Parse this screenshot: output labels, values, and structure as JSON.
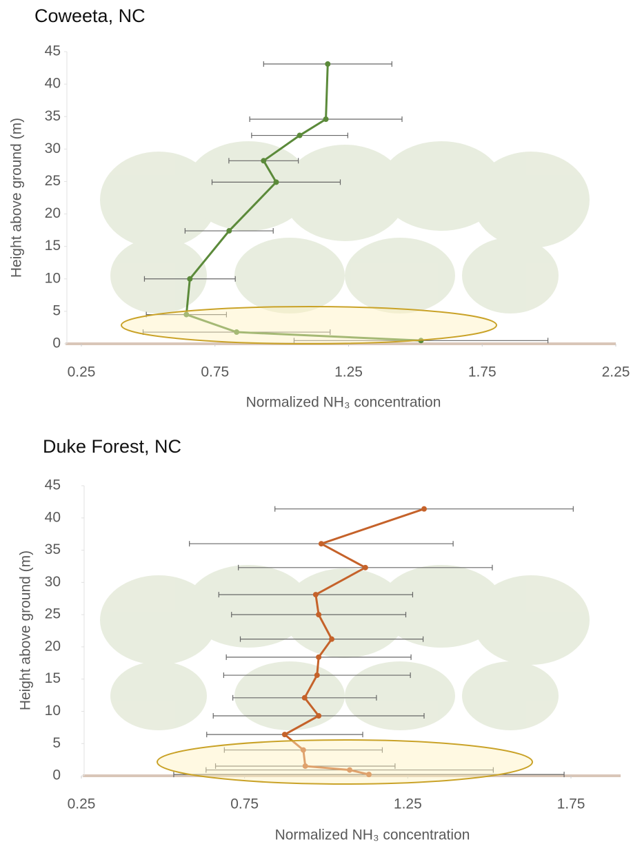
{
  "chart_data": [
    {
      "type": "line",
      "title": "Coweeta, NC",
      "xlabel": "Normalized NH₃ concentration",
      "ylabel": "Height above ground (m)",
      "x": [
        1.172,
        1.165,
        1.067,
        0.932,
        0.979,
        0.803,
        0.656,
        0.643,
        0.831,
        1.521
      ],
      "y": [
        43.1,
        34.6,
        32.1,
        28.2,
        24.9,
        17.4,
        10.0,
        4.5,
        1.8,
        0.5
      ],
      "xerr": [
        0.24,
        0.285,
        0.18,
        0.13,
        0.24,
        0.165,
        0.17,
        0.15,
        0.35,
        0.475
      ],
      "color": "#5b8a3a",
      "xlim": [
        0.25,
        2.25
      ],
      "xticks": [
        0.25,
        0.75,
        1.25,
        1.75,
        2.25
      ],
      "ylim": [
        0,
        45
      ],
      "yticks": [
        0,
        5,
        10,
        15,
        20,
        25,
        30,
        35,
        40,
        45
      ]
    },
    {
      "type": "line",
      "title": "Duke Forest, NC",
      "xlabel": "Normalized NH₃ concentration",
      "ylabel": "Height above ground (m)",
      "x": [
        1.3,
        0.985,
        1.12,
        0.968,
        0.977,
        1.017,
        0.977,
        0.972,
        0.934,
        0.977,
        0.873,
        0.93,
        0.936,
        1.072,
        1.131
      ],
      "y": [
        41.4,
        36.0,
        32.3,
        28.1,
        25.0,
        21.2,
        18.4,
        15.6,
        12.1,
        9.3,
        6.4,
        4.0,
        1.5,
        0.9,
        0.2
      ],
      "xerr": [
        0.457,
        0.404,
        0.389,
        0.297,
        0.267,
        0.28,
        0.283,
        0.286,
        0.22,
        0.323,
        0.239,
        0.242,
        0.275,
        0.44,
        0.598
      ],
      "color": "#c5622a",
      "xlim": [
        0.25,
        1.75
      ],
      "xticks": [
        0.25,
        0.75,
        1.25,
        1.75
      ],
      "ylim": [
        0,
        45
      ],
      "yticks": [
        0,
        5,
        10,
        15,
        20,
        25,
        30,
        35,
        40,
        45
      ]
    }
  ]
}
